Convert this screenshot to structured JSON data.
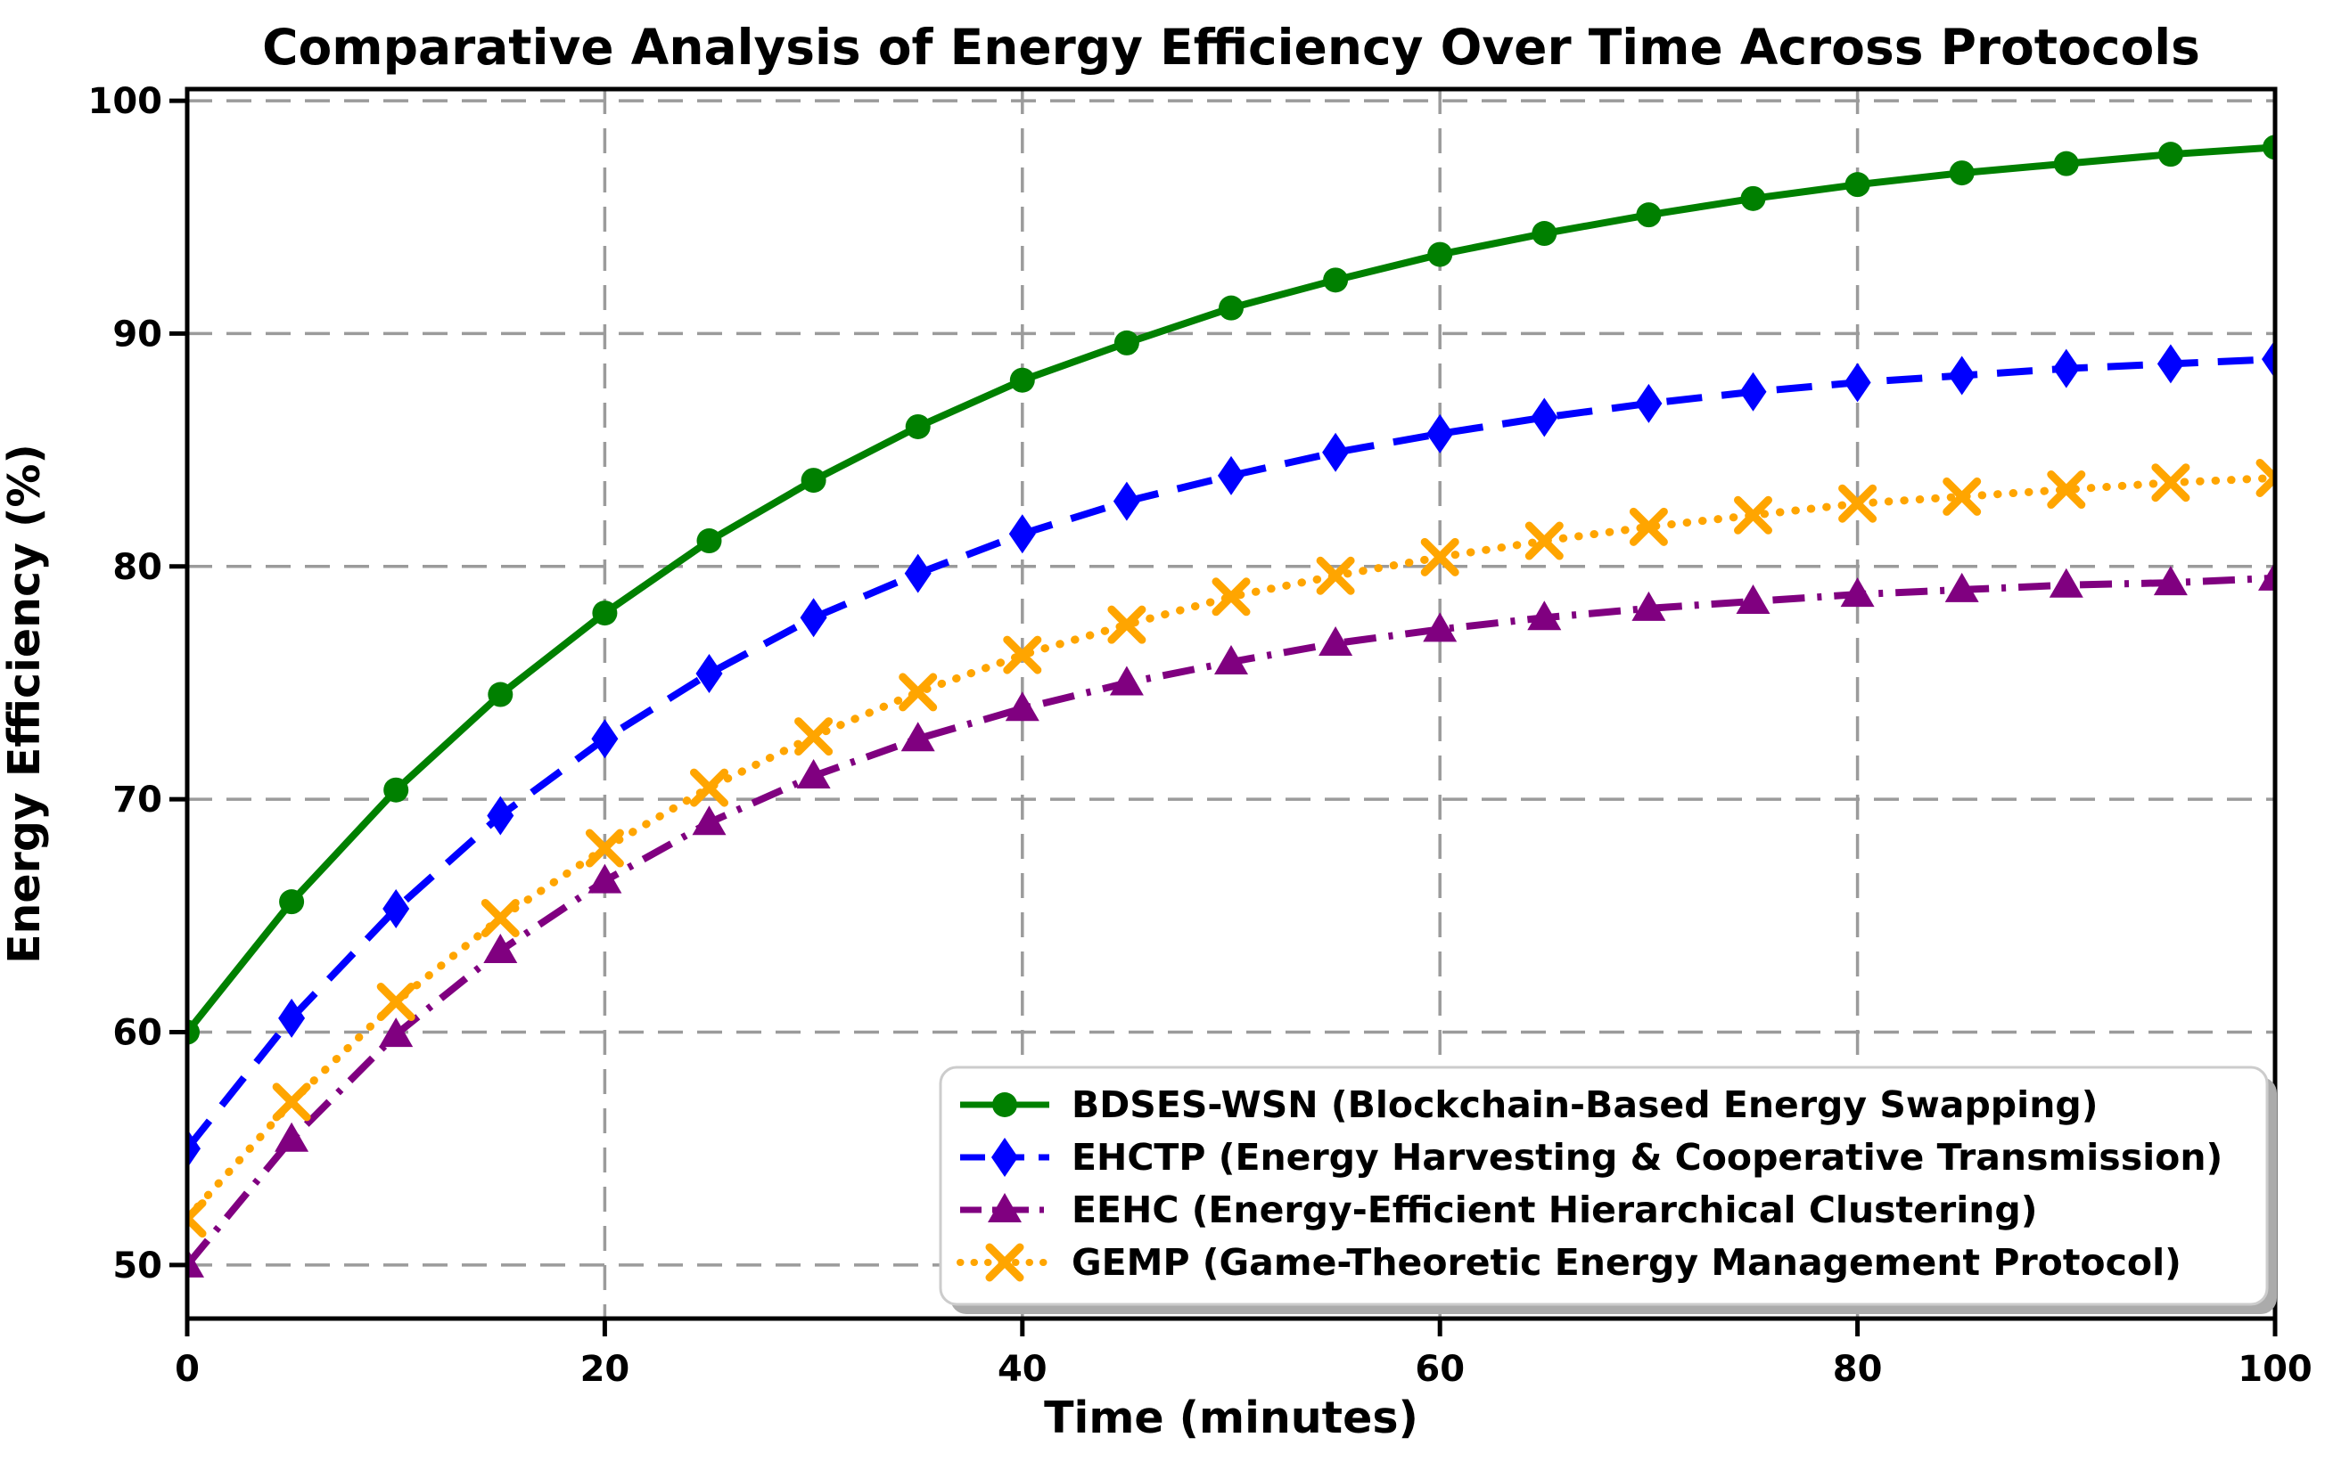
{
  "figure": {
    "background": "#ffffff"
  },
  "chart_data": {
    "type": "line",
    "title": "Comparative Analysis of Energy Efficiency Over Time Across Protocols",
    "xlabel": "Time (minutes)",
    "ylabel": "Energy Efficiency (%)",
    "xlim": [
      0,
      100
    ],
    "ylim": [
      47.7,
      100.5
    ],
    "xticks": [
      0,
      20,
      40,
      60,
      80,
      100
    ],
    "yticks": [
      50,
      60,
      70,
      80,
      90,
      100
    ],
    "grid": true,
    "grid_style": "dashed",
    "legend_position": "lower right",
    "x": [
      0,
      5,
      10,
      15,
      20,
      25,
      30,
      35,
      40,
      45,
      50,
      55,
      60,
      65,
      70,
      75,
      80,
      85,
      90,
      95,
      100
    ],
    "series": [
      {
        "name": "BDSES-WSN (Blockchain-Based Energy Swapping)",
        "color": "#008000",
        "linestyle": "solid",
        "marker": "circle",
        "values": [
          60.0,
          65.6,
          70.4,
          74.5,
          78.0,
          81.1,
          83.7,
          86.0,
          88.0,
          89.6,
          91.1,
          92.3,
          93.4,
          94.3,
          95.1,
          95.8,
          96.4,
          96.9,
          97.3,
          97.7,
          98.0
        ]
      },
      {
        "name": "EHCTP (Energy Harvesting & Cooperative Transmission)",
        "color": "#0000ff",
        "linestyle": "dashed",
        "marker": "diamond",
        "values": [
          55.0,
          60.6,
          65.3,
          69.3,
          72.6,
          75.4,
          77.8,
          79.7,
          81.4,
          82.8,
          83.9,
          84.9,
          85.7,
          86.4,
          87.0,
          87.5,
          87.9,
          88.2,
          88.5,
          88.7,
          88.9
        ]
      },
      {
        "name": "EEHC (Energy-Efficient Hierarchical Clustering)",
        "color": "#800080",
        "linestyle": "dashdot",
        "marker": "triangle-up",
        "values": [
          50.0,
          55.4,
          59.9,
          63.5,
          66.5,
          69.0,
          71.0,
          72.6,
          73.9,
          75.0,
          75.9,
          76.7,
          77.3,
          77.8,
          78.2,
          78.5,
          78.8,
          79.0,
          79.2,
          79.3,
          79.5
        ]
      },
      {
        "name": "GEMP (Game-Theoretic Energy Management Protocol)",
        "color": "#ffa500",
        "linestyle": "dotted",
        "marker": "x",
        "values": [
          52.0,
          57.0,
          61.3,
          64.9,
          67.9,
          70.5,
          72.7,
          74.6,
          76.2,
          77.5,
          78.7,
          79.6,
          80.4,
          81.1,
          81.7,
          82.2,
          82.7,
          83.0,
          83.3,
          83.6,
          83.8
        ]
      }
    ]
  }
}
